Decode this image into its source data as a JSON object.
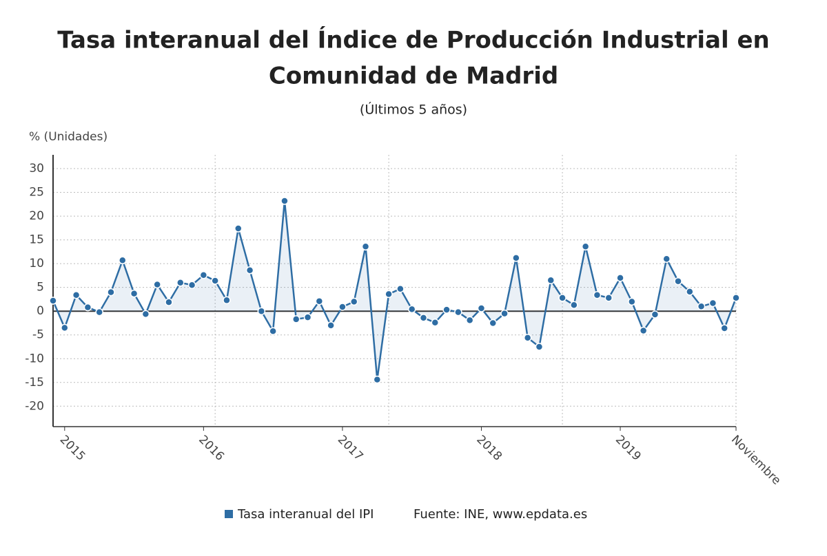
{
  "chart_data": {
    "type": "line",
    "title_lines": [
      "Tasa interanual del Índice de Producción Industrial en",
      "Comunidad de Madrid"
    ],
    "subtitle": "(Últimos 5 años)",
    "y_label": "% (Unidades)",
    "source": "Fuente: INE, www.epdata.es",
    "categories": [
      null,
      "2015",
      null,
      null,
      null,
      null,
      null,
      null,
      null,
      null,
      null,
      null,
      null,
      "2016",
      null,
      null,
      null,
      null,
      null,
      null,
      null,
      null,
      null,
      null,
      null,
      "2017",
      null,
      null,
      null,
      null,
      null,
      null,
      null,
      null,
      null,
      null,
      null,
      "2018",
      null,
      null,
      null,
      null,
      null,
      null,
      null,
      null,
      null,
      null,
      null,
      "2019",
      null,
      null,
      null,
      null,
      null,
      null,
      null,
      null,
      null,
      "Noviembre"
    ],
    "series": [
      {
        "name": "Tasa interanual del IPI",
        "color": "#2e6da4",
        "values": [
          2.2,
          -3.5,
          3.4,
          0.8,
          -0.2,
          4.0,
          10.7,
          3.7,
          -0.6,
          5.6,
          1.9,
          6.0,
          5.5,
          7.6,
          6.4,
          2.3,
          17.4,
          8.6,
          0,
          -4.2,
          23.2,
          -1.7,
          -1.3,
          2.1,
          -3.0,
          0.9,
          2.0,
          13.6,
          -14.4,
          3.6,
          4.7,
          0.4,
          -1.4,
          -2.4,
          0.3,
          -0.2,
          -1.9,
          0.6,
          -2.5,
          -0.5,
          11.2,
          -5.6,
          -7.5,
          6.5,
          2.8,
          1.3,
          13.6,
          3.4,
          2.8,
          7.0,
          2.0,
          -4.1,
          -0.7,
          11.0,
          6.3,
          4.1,
          1.0,
          1.7,
          -3.6,
          2.8
        ]
      }
    ],
    "ylim": [
      -24.3,
      32.9
    ],
    "yticks": [
      -20,
      -15,
      -10,
      -5,
      0,
      5,
      10,
      15,
      20,
      25,
      30
    ],
    "grid": true
  }
}
